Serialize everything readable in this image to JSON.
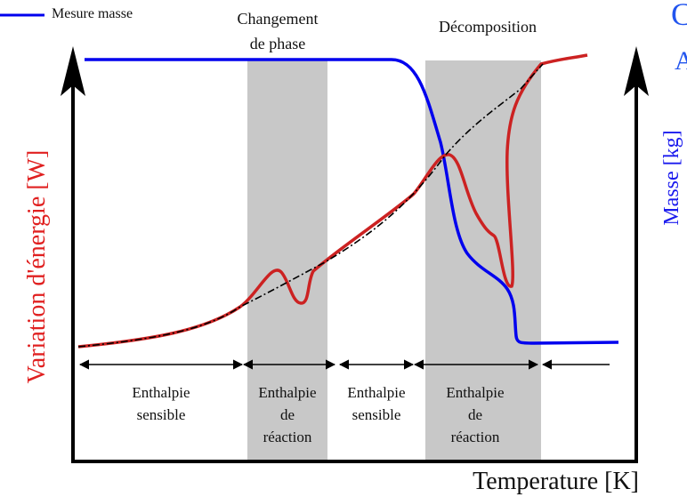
{
  "legend": {
    "label": "Mesure masse"
  },
  "top_labels": [
    {
      "lines": [
        "Changement",
        "de phase"
      ]
    },
    {
      "lines": [
        "Décomposition"
      ]
    }
  ],
  "axes": {
    "y_left": {
      "label": "Variation d'énergie",
      "unit": "[W]"
    },
    "y_right": {
      "label": "Masse",
      "unit": "[kg]"
    },
    "x": {
      "label": "Temperature [K]"
    }
  },
  "regions": [
    {
      "lines": [
        "Enthalpie",
        "sensible"
      ]
    },
    {
      "lines": [
        "Enthalpie",
        "de",
        "réaction"
      ]
    },
    {
      "lines": [
        "Enthalpie",
        "sensible"
      ]
    },
    {
      "lines": [
        "Enthalpie",
        "de",
        "réaction"
      ]
    }
  ],
  "cut_off_text": [
    "C",
    "A"
  ]
}
